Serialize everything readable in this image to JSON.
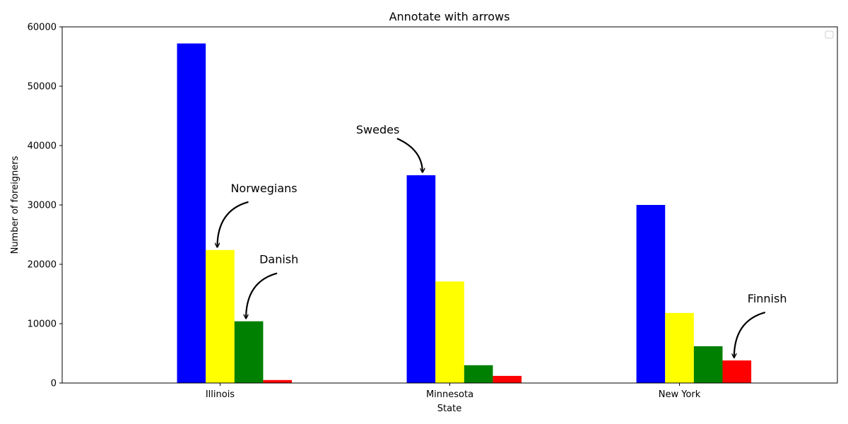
{
  "chart_data": {
    "type": "bar",
    "title": "Annotate with arrows",
    "xlabel": "State",
    "ylabel": "Number of foreigners",
    "categories": [
      "Illinois",
      "Minnesota",
      "New York"
    ],
    "ylim": [
      0,
      60000
    ],
    "yticks": [
      0,
      10000,
      20000,
      30000,
      40000,
      50000,
      60000
    ],
    "grid": false,
    "legend": {
      "placement": "top-right",
      "entries": []
    },
    "series": [
      {
        "color": "#0000ff",
        "values": [
          57200,
          35000,
          30000
        ]
      },
      {
        "color": "#ffff00",
        "values": [
          22400,
          17100,
          11800
        ]
      },
      {
        "color": "#008000",
        "values": [
          10400,
          3000,
          6200
        ]
      },
      {
        "color": "#ff0000",
        "values": [
          500,
          1200,
          3800
        ]
      }
    ],
    "annotations": [
      {
        "text": "Norwegians",
        "series": 1,
        "category": 0
      },
      {
        "text": "Danish",
        "series": 2,
        "category": 0
      },
      {
        "text": "Swedes",
        "series": 0,
        "category": 1
      },
      {
        "text": "Finnish",
        "series": 3,
        "category": 2
      }
    ]
  }
}
